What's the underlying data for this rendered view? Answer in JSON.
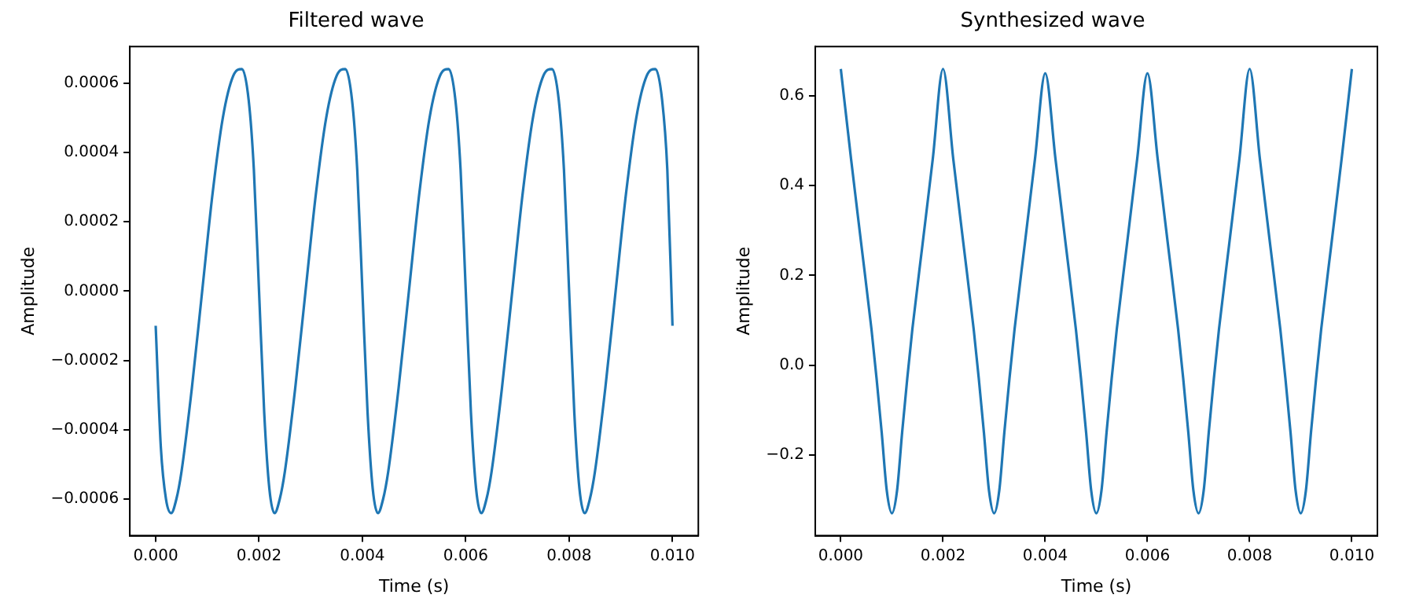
{
  "chart_data": [
    {
      "type": "line",
      "title": "Filtered wave",
      "xlabel": "Time (s)",
      "ylabel": "Amplitude",
      "grid": false,
      "x": [
        0,
        0.0001,
        0.0002,
        0.0003,
        0.0004,
        0.0005,
        0.0007,
        0.0009,
        0.0011,
        0.0013,
        0.0015,
        0.00167,
        0.0018,
        0.0019,
        0.002,
        0.0021,
        0.0022,
        0.0023,
        0.0024,
        0.0025,
        0.0027,
        0.0029,
        0.0031,
        0.0033,
        0.0035,
        0.00367,
        0.0038,
        0.0039,
        0.004,
        0.0041,
        0.0042,
        0.0043,
        0.0044,
        0.0045,
        0.0047,
        0.0049,
        0.0051,
        0.0053,
        0.0055,
        0.00567,
        0.0058,
        0.0059,
        0.006,
        0.0061,
        0.0062,
        0.0063,
        0.0064,
        0.0065,
        0.0067,
        0.0069,
        0.0071,
        0.0073,
        0.0075,
        0.00767,
        0.0078,
        0.0079,
        0.008,
        0.0081,
        0.0082,
        0.0083,
        0.0084,
        0.0085,
        0.0087,
        0.0089,
        0.0091,
        0.0093,
        0.0095,
        0.00967,
        0.0098,
        0.0099,
        0.01
      ],
      "series": [
        {
          "color": "#1f77b4",
          "values": [
            -0.0001,
            -0.00045,
            -0.0006,
            -0.00064,
            -0.0006,
            -0.00052,
            -0.00028,
            0,
            0.00028,
            0.0005,
            0.00062,
            0.00064,
            0.00055,
            0.00035,
            0,
            -0.00035,
            -0.00057,
            -0.00064,
            -0.0006,
            -0.00052,
            -0.00028,
            0,
            0.00028,
            0.0005,
            0.00062,
            0.00064,
            0.00055,
            0.00035,
            0,
            -0.00035,
            -0.00057,
            -0.00064,
            -0.0006,
            -0.00052,
            -0.00028,
            0,
            0.00028,
            0.0005,
            0.00062,
            0.00064,
            0.00055,
            0.00035,
            0,
            -0.00035,
            -0.00057,
            -0.00064,
            -0.0006,
            -0.00052,
            -0.00028,
            0,
            0.00028,
            0.0005,
            0.00062,
            0.00064,
            0.00055,
            0.00035,
            0,
            -0.00035,
            -0.00057,
            -0.00064,
            -0.0006,
            -0.00052,
            -0.00028,
            0,
            0.00028,
            0.0005,
            0.00062,
            0.00064,
            0.00055,
            0.00035,
            -0.0001
          ]
        }
      ],
      "xlim": [
        -0.0005,
        0.0105
      ],
      "xticks": [
        {
          "value": 0,
          "label": "0.000"
        },
        {
          "value": 0.002,
          "label": "0.002"
        },
        {
          "value": 0.004,
          "label": "0.004"
        },
        {
          "value": 0.006,
          "label": "0.006"
        },
        {
          "value": 0.008,
          "label": "0.008"
        },
        {
          "value": 0.01,
          "label": "0.010"
        }
      ],
      "ylim": [
        -0.000705,
        0.000705
      ],
      "yticks": [
        {
          "value": -0.0006,
          "label": "−0.0006"
        },
        {
          "value": -0.0004,
          "label": "−0.0004"
        },
        {
          "value": -0.0002,
          "label": "−0.0002"
        },
        {
          "value": 0,
          "label": "0.0000"
        },
        {
          "value": 0.0002,
          "label": "0.0002"
        },
        {
          "value": 0.0004,
          "label": "0.0004"
        },
        {
          "value": 0.0006,
          "label": "0.0006"
        }
      ]
    },
    {
      "type": "line",
      "title": "Synthesized wave",
      "xlabel": "Time (s)",
      "ylabel": "Amplitude",
      "grid": false,
      "x": [
        0,
        0.0002,
        0.0004,
        0.0006,
        0.0007,
        0.0008,
        0.0009,
        0.001,
        0.0011,
        0.0012,
        0.0013,
        0.0014,
        0.0016,
        0.0018,
        0.002,
        0.0022,
        0.0024,
        0.0026,
        0.0027,
        0.0028,
        0.0029,
        0.003,
        0.0031,
        0.0032,
        0.0033,
        0.0034,
        0.0036,
        0.0038,
        0.004,
        0.0042,
        0.0044,
        0.0046,
        0.0047,
        0.0048,
        0.0049,
        0.005,
        0.0051,
        0.0052,
        0.0053,
        0.0054,
        0.0056,
        0.0058,
        0.006,
        0.0062,
        0.0064,
        0.0066,
        0.0067,
        0.0068,
        0.0069,
        0.007,
        0.0071,
        0.0072,
        0.0073,
        0.0074,
        0.0076,
        0.0078,
        0.008,
        0.0082,
        0.0084,
        0.0086,
        0.0087,
        0.0088,
        0.0089,
        0.009,
        0.0091,
        0.0092,
        0.0093,
        0.0094,
        0.0096,
        0.0098,
        0.01
      ],
      "series": [
        {
          "color": "#1f77b4",
          "values": [
            0.66,
            0.46,
            0.27,
            0.08,
            -0.03,
            -0.15,
            -0.28,
            -0.33,
            -0.28,
            -0.15,
            -0.03,
            0.08,
            0.27,
            0.46,
            0.66,
            0.46,
            0.27,
            0.08,
            -0.03,
            -0.15,
            -0.28,
            -0.33,
            -0.28,
            -0.15,
            -0.03,
            0.08,
            0.27,
            0.46,
            0.65,
            0.46,
            0.27,
            0.08,
            -0.03,
            -0.15,
            -0.28,
            -0.33,
            -0.28,
            -0.15,
            -0.03,
            0.08,
            0.27,
            0.46,
            0.65,
            0.46,
            0.27,
            0.08,
            -0.03,
            -0.15,
            -0.28,
            -0.33,
            -0.28,
            -0.15,
            -0.03,
            0.08,
            0.27,
            0.46,
            0.66,
            0.46,
            0.27,
            0.08,
            -0.03,
            -0.15,
            -0.28,
            -0.33,
            -0.28,
            -0.15,
            -0.03,
            0.08,
            0.27,
            0.46,
            0.66
          ]
        }
      ],
      "xlim": [
        -0.0005,
        0.0105
      ],
      "xticks": [
        {
          "value": 0,
          "label": "0.000"
        },
        {
          "value": 0.002,
          "label": "0.002"
        },
        {
          "value": 0.004,
          "label": "0.004"
        },
        {
          "value": 0.006,
          "label": "0.006"
        },
        {
          "value": 0.008,
          "label": "0.008"
        },
        {
          "value": 0.01,
          "label": "0.010"
        }
      ],
      "ylim": [
        -0.38,
        0.71
      ],
      "yticks": [
        {
          "value": -0.2,
          "label": "−0.2"
        },
        {
          "value": 0,
          "label": "0.0"
        },
        {
          "value": 0.2,
          "label": "0.2"
        },
        {
          "value": 0.4,
          "label": "0.4"
        },
        {
          "value": 0.6,
          "label": "0.6"
        }
      ]
    }
  ]
}
